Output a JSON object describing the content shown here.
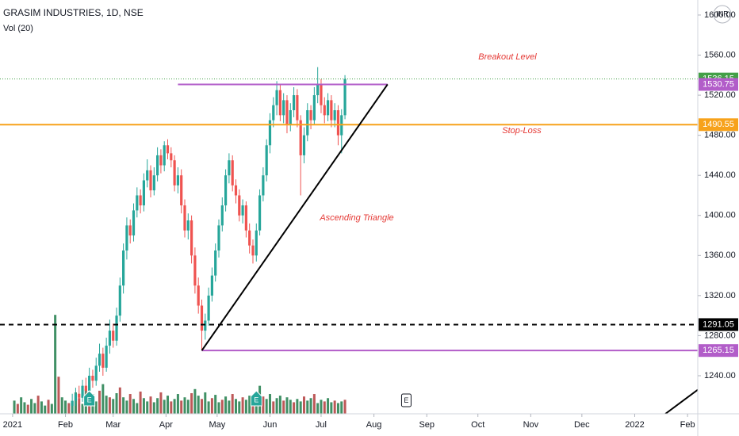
{
  "chart_data": {
    "type": "candlestick",
    "title": "GRASIM INDUSTRIES, 1D, NSE",
    "subtitle": "Vol (20)",
    "currency": "INR",
    "up_color": "#26a69a",
    "down_color": "#ef5350",
    "grid": false,
    "xlim": [
      -7.4,
      402
    ],
    "xticks": [
      {
        "value": 0,
        "label": "2021"
      },
      {
        "value": 31,
        "label": "Feb"
      },
      {
        "value": 59,
        "label": "Mar"
      },
      {
        "value": 90,
        "label": "Apr"
      },
      {
        "value": 120,
        "label": "May"
      },
      {
        "value": 151,
        "label": "Jun"
      },
      {
        "value": 181,
        "label": "Jul"
      },
      {
        "value": 212,
        "label": "Aug"
      },
      {
        "value": 243,
        "label": "Sep"
      },
      {
        "value": 273,
        "label": "Oct"
      },
      {
        "value": 304,
        "label": "Nov"
      },
      {
        "value": 334,
        "label": "Dec"
      },
      {
        "value": 365,
        "label": "2022"
      },
      {
        "value": 396,
        "label": "Feb"
      }
    ],
    "ylim": [
      1202,
      1615
    ],
    "yticks": [
      {
        "value": 1240,
        "label": "1240.00"
      },
      {
        "value": 1280,
        "label": "1280.00"
      },
      {
        "value": 1320,
        "label": "1320.00"
      },
      {
        "value": 1360,
        "label": "1360.00"
      },
      {
        "value": 1400,
        "label": "1400.00"
      },
      {
        "value": 1440,
        "label": "1440.00"
      },
      {
        "value": 1480,
        "label": "1480.00"
      },
      {
        "value": 1520,
        "label": "1520.00"
      },
      {
        "value": 1560,
        "label": "1560.00"
      },
      {
        "value": 1600,
        "label": "1600.00"
      }
    ],
    "candles": [
      [
        35,
        1210,
        1222,
        1204,
        1215
      ],
      [
        37,
        1215,
        1228,
        1210,
        1222
      ],
      [
        39,
        1222,
        1230,
        1212,
        1218
      ],
      [
        41,
        1218,
        1236,
        1214,
        1230
      ],
      [
        43,
        1230,
        1238,
        1218,
        1225
      ],
      [
        45,
        1225,
        1248,
        1220,
        1240
      ],
      [
        47,
        1240,
        1246,
        1228,
        1235
      ],
      [
        49,
        1235,
        1258,
        1230,
        1250
      ],
      [
        51,
        1250,
        1272,
        1244,
        1262
      ],
      [
        53,
        1262,
        1268,
        1240,
        1248
      ],
      [
        55,
        1248,
        1278,
        1244,
        1270
      ],
      [
        57,
        1270,
        1296,
        1262,
        1285
      ],
      [
        59,
        1285,
        1292,
        1268,
        1275
      ],
      [
        61,
        1275,
        1308,
        1270,
        1300
      ],
      [
        63,
        1300,
        1338,
        1294,
        1330
      ],
      [
        65,
        1330,
        1372,
        1322,
        1365
      ],
      [
        67,
        1365,
        1398,
        1356,
        1390
      ],
      [
        69,
        1390,
        1396,
        1372,
        1380
      ],
      [
        71,
        1380,
        1412,
        1374,
        1405
      ],
      [
        73,
        1405,
        1428,
        1398,
        1420
      ],
      [
        75,
        1420,
        1426,
        1402,
        1410
      ],
      [
        77,
        1410,
        1442,
        1404,
        1435
      ],
      [
        79,
        1435,
        1456,
        1428,
        1445
      ],
      [
        81,
        1445,
        1450,
        1418,
        1425
      ],
      [
        83,
        1425,
        1448,
        1420,
        1440
      ],
      [
        85,
        1440,
        1468,
        1434,
        1460
      ],
      [
        87,
        1460,
        1466,
        1442,
        1450
      ],
      [
        89,
        1450,
        1474,
        1444,
        1470
      ],
      [
        91,
        1470,
        1476,
        1456,
        1462
      ],
      [
        93,
        1462,
        1468,
        1448,
        1455
      ],
      [
        95,
        1455,
        1460,
        1424,
        1430
      ],
      [
        97,
        1430,
        1448,
        1422,
        1440
      ],
      [
        99,
        1440,
        1446,
        1402,
        1410
      ],
      [
        101,
        1410,
        1416,
        1378,
        1385
      ],
      [
        103,
        1385,
        1402,
        1376,
        1395
      ],
      [
        105,
        1395,
        1400,
        1352,
        1360
      ],
      [
        107,
        1360,
        1368,
        1322,
        1330
      ],
      [
        109,
        1330,
        1338,
        1302,
        1310
      ],
      [
        111,
        1310,
        1316,
        1265.15,
        1285
      ],
      [
        113,
        1285,
        1302,
        1276,
        1295
      ],
      [
        115,
        1295,
        1328,
        1290,
        1320
      ],
      [
        117,
        1320,
        1348,
        1314,
        1340
      ],
      [
        119,
        1340,
        1372,
        1334,
        1365
      ],
      [
        121,
        1365,
        1396,
        1358,
        1390
      ],
      [
        123,
        1390,
        1418,
        1384,
        1410
      ],
      [
        125,
        1410,
        1446,
        1404,
        1440
      ],
      [
        127,
        1440,
        1462,
        1432,
        1455
      ],
      [
        129,
        1455,
        1460,
        1424,
        1430
      ],
      [
        131,
        1430,
        1436,
        1412,
        1420
      ],
      [
        133,
        1420,
        1426,
        1394,
        1400
      ],
      [
        135,
        1400,
        1416,
        1392,
        1410
      ],
      [
        137,
        1410,
        1414,
        1378,
        1385
      ],
      [
        139,
        1385,
        1392,
        1362,
        1370
      ],
      [
        141,
        1370,
        1376,
        1352,
        1360
      ],
      [
        143,
        1360,
        1392,
        1354,
        1385
      ],
      [
        145,
        1385,
        1426,
        1380,
        1420
      ],
      [
        147,
        1420,
        1448,
        1414,
        1440
      ],
      [
        149,
        1440,
        1476,
        1434,
        1470
      ],
      [
        151,
        1470,
        1502,
        1462,
        1495
      ],
      [
        153,
        1495,
        1518,
        1488,
        1510
      ],
      [
        155,
        1510,
        1534,
        1500,
        1525
      ],
      [
        157,
        1525,
        1530,
        1494,
        1500
      ],
      [
        159,
        1500,
        1522,
        1492,
        1515
      ],
      [
        161,
        1515,
        1520,
        1482,
        1490
      ],
      [
        163,
        1490,
        1512,
        1484,
        1505
      ],
      [
        165,
        1505,
        1528,
        1498,
        1520
      ],
      [
        167,
        1520,
        1526,
        1488,
        1495
      ],
      [
        169,
        1495,
        1500,
        1420,
        1460
      ],
      [
        171,
        1460,
        1488,
        1452,
        1480
      ],
      [
        173,
        1480,
        1512,
        1474,
        1505
      ],
      [
        175,
        1505,
        1510,
        1486,
        1495
      ],
      [
        177,
        1495,
        1528,
        1490,
        1520
      ],
      [
        179,
        1520,
        1548,
        1512,
        1530
      ],
      [
        181,
        1530,
        1536,
        1502,
        1510
      ],
      [
        183,
        1510,
        1518,
        1492,
        1500
      ],
      [
        185,
        1500,
        1522,
        1494,
        1515
      ],
      [
        187,
        1515,
        1520,
        1488,
        1495
      ],
      [
        189,
        1495,
        1512,
        1488,
        1505
      ],
      [
        191,
        1505,
        1510,
        1470,
        1480
      ],
      [
        193,
        1480,
        1506,
        1462,
        1500
      ],
      [
        195,
        1500,
        1540,
        1496,
        1536.15
      ]
    ],
    "volume": {
      "x_start": 1,
      "x_step": 2,
      "lim": [
        0,
        12.5
      ],
      "values": [
        1.6,
        1.2,
        2.0,
        1.4,
        1.1,
        1.8,
        1.3,
        2.2,
        1.5,
        1.0,
        1.7,
        1.2,
        12.0,
        4.5,
        2.0,
        1.6,
        1.3,
        1.5,
        2.6,
        1.9,
        1.2,
        3.0,
        1.7,
        2.4,
        1.5,
        2.8,
        3.6,
        2.2,
        2.0,
        1.8,
        2.5,
        3.2,
        2.0,
        1.6,
        2.4,
        1.8,
        1.3,
        2.7,
        1.9,
        1.5,
        2.1,
        1.4,
        1.9,
        2.6,
        1.7,
        2.2,
        1.5,
        1.8,
        2.4,
        1.6,
        2.0,
        1.7,
        2.5,
        3.0,
        2.2,
        1.8,
        2.6,
        1.5,
        1.9,
        2.3,
        1.4,
        1.7,
        2.1,
        1.6,
        2.4,
        1.8,
        1.5,
        2.0,
        1.7,
        2.2,
        1.6,
        1.9,
        3.4,
        2.1,
        1.8,
        2.4,
        1.5,
        1.9,
        2.2,
        1.6,
        2.0,
        1.7,
        1.4,
        1.8,
        1.5,
        2.1,
        1.6,
        1.9,
        2.4,
        1.3,
        1.7,
        1.5,
        1.9,
        1.4,
        1.6,
        1.3,
        1.5,
        1.7
      ]
    },
    "levels": [
      {
        "value": 1530.75,
        "color": "#b25dc9",
        "from": 97,
        "to": 220,
        "style": "solid"
      },
      {
        "value": 1490.55,
        "color": "#f7a21b",
        "style": "solid"
      },
      {
        "value": 1291.05,
        "color": "#000000",
        "style": "dashed"
      },
      {
        "value": 1265.15,
        "color": "#b25dc9",
        "from": 111,
        "style": "solid"
      }
    ],
    "last_price_color": "#43a047",
    "trendlines": [
      [
        [
          111,
          1265.15
        ],
        [
          220,
          1530.75
        ]
      ],
      [
        [
          383,
          1202
        ],
        [
          402,
          1226
        ]
      ]
    ],
    "annotations": [
      "Breakout Level",
      "Stop-Loss",
      "Ascending Triangle"
    ],
    "events": [
      {
        "x": 45,
        "label": "E"
      },
      {
        "x": 143,
        "label": "E"
      },
      {
        "x": 231,
        "label": "E"
      }
    ]
  }
}
